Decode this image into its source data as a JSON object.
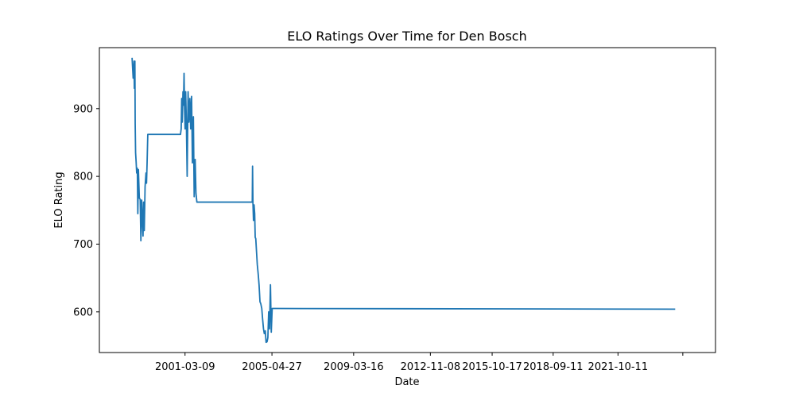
{
  "chart_data": {
    "type": "line",
    "title": "ELO Ratings Over Time for Den Bosch",
    "xlabel": "Date",
    "ylabel": "ELO Rating",
    "x_tick_labels": [
      "2001-03-09",
      "2005-04-27",
      "2009-03-16",
      "2012-11-08",
      "2015-10-17",
      "2018-09-11",
      "2021-10-11"
    ],
    "y_tick_labels": [
      "600",
      "700",
      "800",
      "900"
    ],
    "y_ticks": [
      600,
      700,
      800,
      900
    ],
    "xlim": [
      "1997-02-10",
      "2026-06-01"
    ],
    "ylim": [
      540,
      990
    ],
    "grid": false,
    "series_color": "#1f77b4",
    "series": [
      {
        "x": [
          "1998-09-01",
          "1998-09-20",
          "1998-10-05",
          "1998-10-10",
          "1998-10-20",
          "1998-10-25",
          "1998-11-01",
          "1998-11-10",
          "1998-11-20",
          "1998-12-01",
          "1998-12-10",
          "1998-12-20",
          "1999-01-05",
          "1999-01-20",
          "1999-02-01",
          "1999-02-15",
          "1999-03-01",
          "1999-03-10",
          "1999-03-20",
          "1999-04-01",
          "1999-04-15",
          "1999-05-01",
          "1999-05-10",
          "1999-05-20",
          "1999-06-01",
          "1999-06-15",
          "1999-07-10",
          "1999-07-25",
          "1999-08-05",
          "1999-08-20",
          "1999-09-01",
          "1999-09-10",
          "1999-09-25",
          "1999-10-05",
          "1999-10-15",
          "1999-10-25",
          "1999-11-05",
          "1999-11-15",
          "1999-11-25",
          "1999-12-05",
          "1999-12-15",
          "1999-12-25",
          "2000-01-05",
          "2000-01-25",
          "2000-02-10",
          "2000-03-01",
          "2000-03-05",
          "2000-12-20",
          "2001-01-01",
          "2001-01-10",
          "2001-01-20",
          "2001-02-01",
          "2001-02-10",
          "2001-02-20",
          "2001-03-01",
          "2001-03-10",
          "2001-03-20",
          "2001-04-01",
          "2001-04-15",
          "2001-05-01",
          "2001-05-15",
          "2001-06-01",
          "2001-06-15",
          "2001-07-01",
          "2001-07-15",
          "2001-08-01",
          "2001-08-15",
          "2001-09-01",
          "2001-09-15",
          "2001-10-01",
          "2001-10-15",
          "2001-11-01",
          "2001-11-15",
          "2001-12-01",
          "2001-12-15",
          "2002-01-01",
          "2002-01-15",
          "2002-02-01",
          "2002-02-15",
          "2002-03-01",
          "2002-03-15",
          "2002-04-01",
          "2002-04-15",
          "2002-05-01",
          "2002-05-15",
          "2002-06-01",
          "2002-06-15",
          "2002-07-01",
          "2002-07-15",
          "2002-08-01",
          "2002-08-10",
          "2002-08-20",
          "2002-09-01",
          "2002-09-10",
          "2002-09-20",
          "2002-10-01",
          "2002-10-10",
          "2002-10-20",
          "2002-11-01",
          "2004-05-20",
          "2004-05-25",
          "2004-06-01",
          "2004-06-10",
          "2004-06-20",
          "2004-07-01",
          "2004-07-10",
          "2004-07-20",
          "2004-08-01",
          "2004-08-15",
          "2004-09-01",
          "2004-09-15",
          "2004-10-01",
          "2004-10-15",
          "2004-11-01",
          "2004-11-15",
          "2004-12-01",
          "2004-12-15",
          "2005-01-01",
          "2005-01-15",
          "2005-02-01",
          "2005-02-15",
          "2005-03-01",
          "2005-03-15",
          "2005-04-01",
          "2005-04-15",
          "2005-05-01",
          "2005-05-10",
          "2005-05-15",
          "2005-05-20",
          "2005-06-01",
          "2005-06-10",
          "2005-06-20",
          "2005-07-01",
          "2024-07-01"
        ],
        "y": [
          975,
          945,
          970,
          930,
          970,
          878,
          835,
          822,
          805,
          812,
          745,
          810,
          768,
          766,
          705,
          765,
          730,
          712,
          762,
          720,
          785,
          805,
          790,
          820,
          862,
          862,
          862,
          862,
          862,
          862,
          862,
          862,
          862,
          862,
          862,
          862,
          862,
          862,
          862,
          862,
          862,
          862,
          862,
          862,
          862,
          862,
          862,
          862,
          870,
          915,
          880,
          925,
          905,
          952,
          900,
          870,
          925,
          880,
          800,
          925,
          880,
          915,
          870,
          918,
          820,
          888,
          770,
          825,
          775,
          762,
          762,
          762,
          762,
          762,
          762,
          762,
          762,
          762,
          762,
          762,
          762,
          762,
          762,
          762,
          762,
          762,
          762,
          762,
          762,
          762,
          762,
          762,
          762,
          762,
          762,
          762,
          762,
          762,
          762,
          762,
          815,
          760,
          735,
          758,
          745,
          710,
          708,
          690,
          670,
          655,
          640,
          615,
          612,
          605,
          590,
          575,
          568,
          572,
          555,
          556,
          562,
          600,
          575,
          640,
          570,
          605,
          605,
          605,
          605,
          605,
          605,
          605,
          605,
          604
        ]
      }
    ]
  }
}
